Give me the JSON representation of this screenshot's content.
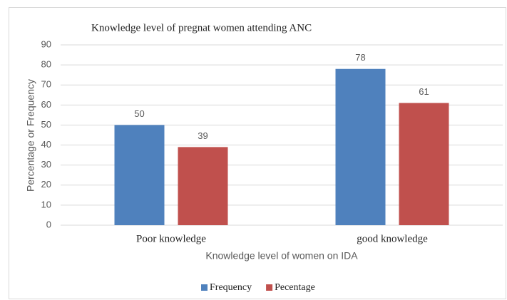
{
  "chart_data": {
    "type": "bar",
    "title": "Knowledge level of pregnat women attending ANC",
    "categories": [
      "Poor knowledge",
      "good knowledge"
    ],
    "series": [
      {
        "name": "Frequency",
        "color": "#4f81bd",
        "values": [
          50,
          78
        ]
      },
      {
        "name": "Pecentage",
        "color": "#c0504d",
        "values": [
          39,
          61
        ]
      }
    ],
    "xlabel": "Knowledge level of women on IDA",
    "ylabel": "Percentage or Frequency",
    "ylim": [
      0,
      90
    ],
    "yticks": [
      0,
      10,
      20,
      30,
      40,
      50,
      60,
      70,
      80,
      90
    ],
    "grid": true,
    "legend": "bottom"
  }
}
